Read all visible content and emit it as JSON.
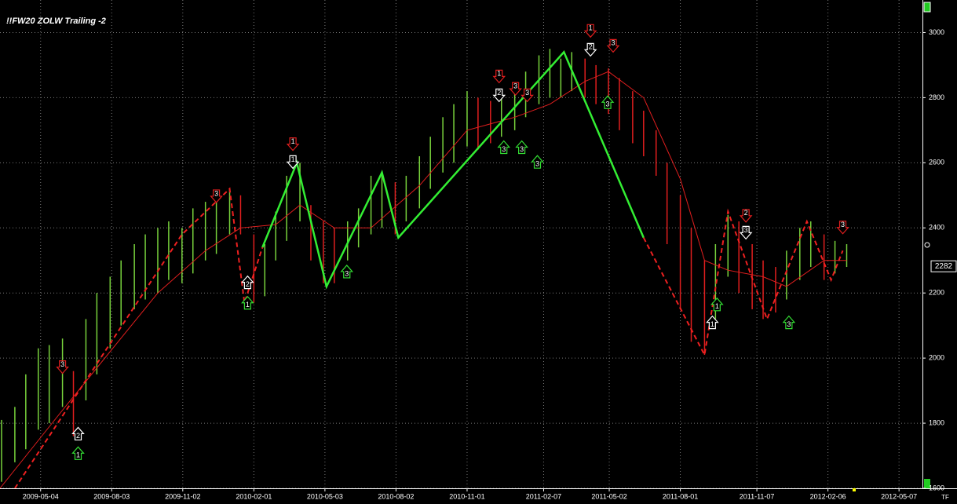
{
  "chart_data": {
    "type": "ohlc",
    "title": "!!FW20 ZOLW Trailing -2",
    "xlim": [
      "2009-03-13",
      "2012-06-06"
    ],
    "xticks": [
      "2009-05-04",
      "2009-08-03",
      "2009-11-02",
      "2010-02-01",
      "2010-05-03",
      "2010-08-02",
      "2010-11-01",
      "2011-02-07",
      "2011-05-02",
      "2011-08-01",
      "2011-11-07",
      "2012-02-06",
      "2012-05-07"
    ],
    "ylim": [
      1600,
      3100
    ],
    "yticks": [
      1600,
      1800,
      2000,
      2200,
      2400,
      2600,
      2800,
      3000
    ],
    "grid": true,
    "background": "#000000",
    "bars": {
      "up_color": "#78d23c",
      "down_color": "#e01e1e",
      "x": [
        "2009-03-15",
        "2009-04-01",
        "2009-04-15",
        "2009-05-01",
        "2009-05-15",
        "2009-06-01",
        "2009-06-15",
        "2009-07-01",
        "2009-07-15",
        "2009-08-01",
        "2009-08-15",
        "2009-09-01",
        "2009-09-15",
        "2009-10-01",
        "2009-10-15",
        "2009-11-01",
        "2009-11-15",
        "2009-12-01",
        "2009-12-15",
        "2010-01-01",
        "2010-01-15",
        "2010-02-01",
        "2010-02-15",
        "2010-03-01",
        "2010-03-15",
        "2010-04-01",
        "2010-04-15",
        "2010-05-01",
        "2010-05-15",
        "2010-06-01",
        "2010-06-15",
        "2010-07-01",
        "2010-07-15",
        "2010-08-01",
        "2010-08-15",
        "2010-09-01",
        "2010-09-15",
        "2010-10-01",
        "2010-10-15",
        "2010-11-01",
        "2010-11-15",
        "2010-12-01",
        "2010-12-15",
        "2011-01-01",
        "2011-01-15",
        "2011-02-01",
        "2011-02-15",
        "2011-03-01",
        "2011-03-15",
        "2011-04-01",
        "2011-04-15",
        "2011-05-01",
        "2011-05-15",
        "2011-06-01",
        "2011-06-15",
        "2011-07-01",
        "2011-07-15",
        "2011-08-01",
        "2011-08-15",
        "2011-09-01",
        "2011-09-15",
        "2011-10-01",
        "2011-10-15",
        "2011-11-01",
        "2011-11-15",
        "2011-12-01",
        "2011-12-15",
        "2012-01-01",
        "2012-01-15",
        "2012-02-01",
        "2012-02-15",
        "2012-03-01"
      ],
      "high": [
        1810,
        1850,
        1950,
        2030,
        2040,
        2060,
        1960,
        2120,
        2200,
        2250,
        2300,
        2350,
        2380,
        2400,
        2420,
        2400,
        2460,
        2480,
        2500,
        2520,
        2500,
        2380,
        2350,
        2450,
        2560,
        2600,
        2470,
        2420,
        2400,
        2420,
        2460,
        2560,
        2570,
        2540,
        2560,
        2620,
        2680,
        2740,
        2780,
        2820,
        2800,
        2790,
        2800,
        2840,
        2880,
        2930,
        2950,
        2920,
        2940,
        2920,
        2900,
        2890,
        2860,
        2820,
        2760,
        2700,
        2600,
        2500,
        2400,
        2300,
        2350,
        2440,
        2420,
        2350,
        2300,
        2280,
        2330,
        2400,
        2420,
        2380,
        2360,
        2350
      ],
      "low": [
        1620,
        1680,
        1720,
        1780,
        1800,
        1850,
        1760,
        1870,
        1950,
        2030,
        2100,
        2150,
        2180,
        2200,
        2240,
        2230,
        2260,
        2300,
        2320,
        2380,
        2380,
        2170,
        2190,
        2300,
        2360,
        2420,
        2300,
        2230,
        2230,
        2300,
        2340,
        2380,
        2400,
        2380,
        2420,
        2460,
        2520,
        2570,
        2600,
        2650,
        2640,
        2660,
        2680,
        2700,
        2740,
        2780,
        2800,
        2800,
        2820,
        2800,
        2780,
        2750,
        2700,
        2660,
        2620,
        2560,
        2350,
        2150,
        2050,
        2010,
        2120,
        2250,
        2200,
        2150,
        2120,
        2140,
        2180,
        2240,
        2280,
        2240,
        2260,
        2280
      ],
      "up": [
        true,
        true,
        true,
        true,
        true,
        true,
        false,
        true,
        true,
        true,
        true,
        true,
        true,
        true,
        true,
        true,
        true,
        true,
        true,
        true,
        false,
        false,
        true,
        true,
        true,
        true,
        false,
        false,
        false,
        true,
        true,
        true,
        true,
        false,
        true,
        true,
        true,
        true,
        true,
        true,
        false,
        false,
        true,
        true,
        true,
        true,
        true,
        true,
        true,
        false,
        false,
        false,
        false,
        false,
        false,
        false,
        false,
        false,
        false,
        false,
        true,
        true,
        false,
        false,
        false,
        false,
        true,
        true,
        true,
        false,
        true,
        true
      ]
    },
    "lines": [
      {
        "color": "#e01e1e",
        "width": 1,
        "dashed": false,
        "x": [
          "2009-03-13",
          "2009-06-01",
          "2009-08-01",
          "2009-10-01",
          "2009-12-01",
          "2010-01-15",
          "2010-03-01",
          "2010-04-01",
          "2010-05-15",
          "2010-07-01",
          "2010-09-01",
          "2010-11-01",
          "2011-01-01",
          "2011-02-15",
          "2011-04-01",
          "2011-05-01",
          "2011-06-15",
          "2011-08-01",
          "2011-09-01",
          "2011-10-01",
          "2011-11-15",
          "2011-12-15",
          "2012-02-01",
          "2012-03-01"
        ],
        "values": [
          1600,
          1840,
          2020,
          2200,
          2330,
          2400,
          2410,
          2470,
          2400,
          2400,
          2530,
          2700,
          2740,
          2780,
          2850,
          2880,
          2800,
          2550,
          2300,
          2270,
          2250,
          2220,
          2300,
          2300
        ]
      },
      {
        "color": "#33ee33",
        "width": 2.5,
        "dashed": false,
        "x": [
          "2010-02-12",
          "2010-03-28",
          "2010-05-05",
          "2010-07-15",
          "2010-08-05",
          "2011-03-05",
          "2011-06-15"
        ],
        "values": [
          2340,
          2600,
          2220,
          2570,
          2370,
          2940,
          2370
        ]
      },
      {
        "color": "#ee2020",
        "width": 2,
        "dashed": true,
        "x": [
          "2009-04-01",
          "2009-11-01",
          "2010-01-01",
          "2010-01-20",
          "2010-02-12"
        ],
        "values": [
          1600,
          2380,
          2520,
          2170,
          2340
        ]
      },
      {
        "color": "#ee2020",
        "width": 2,
        "dashed": true,
        "x": [
          "2011-06-15",
          "2011-09-01",
          "2011-10-01",
          "2011-11-20",
          "2012-01-10",
          "2012-02-10",
          "2012-02-25"
        ],
        "values": [
          2370,
          2010,
          2450,
          2120,
          2420,
          2240,
          2330
        ]
      }
    ],
    "signals": {
      "x": [
        "2009-06-01",
        "2009-06-21",
        "2009-06-21",
        "2009-12-15",
        "2010-01-24",
        "2010-01-24",
        "2010-03-23",
        "2010-03-23",
        "2010-05-31",
        "2010-12-12",
        "2010-12-12",
        "2011-01-02",
        "2011-01-17",
        "2010-12-18",
        "2011-01-10",
        "2011-01-30",
        "2011-04-08",
        "2011-04-08",
        "2011-05-07",
        "2011-04-30",
        "2011-10-24",
        "2011-10-24",
        "2011-09-11",
        "2011-09-17",
        "2011-12-18",
        "2012-02-25"
      ],
      "y": [
        1965,
        1775,
        1715,
        2490,
        2240,
        2177,
        2650,
        2595,
        2273,
        2858,
        2800,
        2820,
        2800,
        2655,
        2655,
        2610,
        2998,
        2940,
        2952,
        2793,
        2430,
        2378,
        2117,
        2172,
        2117,
        2394
      ],
      "labels": [
        "3",
        "2",
        "1",
        "3",
        "2",
        "1",
        "1",
        "1",
        "3",
        "1",
        "2",
        "3",
        "3",
        "3",
        "3",
        "3",
        "1",
        "2",
        "3",
        "3",
        "2",
        "3",
        "1",
        "1",
        "3",
        "3"
      ],
      "direction": [
        "down",
        "up",
        "up",
        "down",
        "up",
        "up",
        "down",
        "down",
        "up",
        "down",
        "down",
        "down",
        "down",
        "up",
        "up",
        "up",
        "down",
        "down",
        "down",
        "up",
        "down",
        "down",
        "up",
        "up",
        "up",
        "down"
      ],
      "color": [
        "#e01e1e",
        "#ffffff",
        "#33dd33",
        "#e01e1e",
        "#ffffff",
        "#33dd33",
        "#e01e1e",
        "#ffffff",
        "#33dd33",
        "#e01e1e",
        "#ffffff",
        "#e01e1e",
        "#e01e1e",
        "#33dd33",
        "#33dd33",
        "#33dd33",
        "#e01e1e",
        "#ffffff",
        "#e01e1e",
        "#33dd33",
        "#e01e1e",
        "#ffffff",
        "#ffffff",
        "#33dd33",
        "#33dd33",
        "#e01e1e"
      ]
    },
    "last_price": 2282,
    "status": "TF"
  }
}
